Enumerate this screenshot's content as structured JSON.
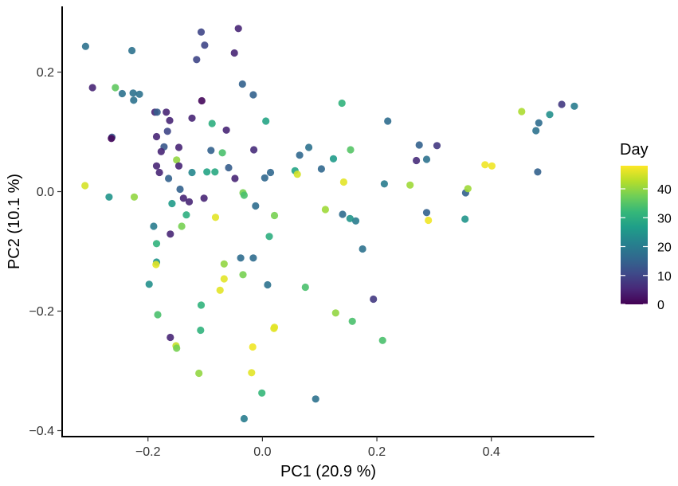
{
  "chart_data": {
    "type": "scatter",
    "xlabel": "PC1 (20.9 %)",
    "ylabel": "PC2 (10.1 %)",
    "xlim": [
      -0.35,
      0.58
    ],
    "ylim": [
      -0.41,
      0.31
    ],
    "x_ticks": [
      {
        "value": -0.2,
        "label": "−0.2"
      },
      {
        "value": 0.0,
        "label": "0.0"
      },
      {
        "value": 0.2,
        "label": "0.2"
      },
      {
        "value": 0.4,
        "label": "0.4"
      }
    ],
    "y_ticks": [
      {
        "value": 0.2,
        "label": "0.2"
      },
      {
        "value": 0.0,
        "label": "0.0"
      },
      {
        "value": -0.2,
        "label": "−0.2"
      },
      {
        "value": -0.4,
        "label": "−0.4"
      }
    ],
    "grid": false,
    "legend": {
      "title": "Day",
      "position": "right",
      "type": "colorbar",
      "range": [
        0,
        48
      ],
      "ticks": [
        0,
        10,
        20,
        30,
        40
      ],
      "colormap": "viridis",
      "colors": [
        "#440154",
        "#482878",
        "#3e4a89",
        "#31688e",
        "#26828e",
        "#1f9e89",
        "#35b779",
        "#6ece58",
        "#b5de2b",
        "#fde725"
      ]
    },
    "points": [
      {
        "x": -0.309,
        "y": 0.243,
        "day": 18
      },
      {
        "x": -0.297,
        "y": 0.174,
        "day": 5
      },
      {
        "x": -0.257,
        "y": 0.174,
        "day": 36
      },
      {
        "x": -0.245,
        "y": 0.164,
        "day": 18
      },
      {
        "x": -0.228,
        "y": 0.236,
        "day": 18
      },
      {
        "x": -0.226,
        "y": 0.165,
        "day": 18
      },
      {
        "x": -0.225,
        "y": 0.153,
        "day": 18
      },
      {
        "x": -0.215,
        "y": 0.163,
        "day": 18
      },
      {
        "x": -0.188,
        "y": 0.133,
        "day": 5
      },
      {
        "x": -0.184,
        "y": 0.133,
        "day": 14
      },
      {
        "x": -0.168,
        "y": 0.133,
        "day": 5
      },
      {
        "x": -0.166,
        "y": 0.101,
        "day": 10
      },
      {
        "x": -0.162,
        "y": 0.119,
        "day": 5
      },
      {
        "x": -0.263,
        "y": 0.091,
        "day": 13
      },
      {
        "x": -0.264,
        "y": 0.089,
        "day": 1
      },
      {
        "x": -0.185,
        "y": 0.092,
        "day": 5
      },
      {
        "x": -0.172,
        "y": 0.075,
        "day": 13
      },
      {
        "x": -0.177,
        "y": 0.067,
        "day": 5
      },
      {
        "x": -0.185,
        "y": 0.043,
        "day": 5
      },
      {
        "x": -0.18,
        "y": 0.032,
        "day": 5
      },
      {
        "x": -0.15,
        "y": 0.053,
        "day": 40
      },
      {
        "x": -0.146,
        "y": 0.074,
        "day": 5
      },
      {
        "x": -0.123,
        "y": 0.123,
        "day": 5
      },
      {
        "x": -0.106,
        "y": 0.152,
        "day": 1
      },
      {
        "x": -0.101,
        "y": 0.245,
        "day": 10
      },
      {
        "x": -0.107,
        "y": 0.267,
        "day": 10
      },
      {
        "x": -0.115,
        "y": 0.221,
        "day": 10
      },
      {
        "x": -0.049,
        "y": 0.232,
        "day": 5
      },
      {
        "x": -0.042,
        "y": 0.273,
        "day": 5
      },
      {
        "x": -0.035,
        "y": 0.18,
        "day": 15
      },
      {
        "x": -0.088,
        "y": 0.114,
        "day": 30
      },
      {
        "x": -0.063,
        "y": 0.103,
        "day": 5
      },
      {
        "x": -0.016,
        "y": 0.162,
        "day": 15
      },
      {
        "x": 0.006,
        "y": 0.118,
        "day": 28
      },
      {
        "x": -0.09,
        "y": 0.069,
        "day": 15
      },
      {
        "x": -0.07,
        "y": 0.065,
        "day": 34
      },
      {
        "x": -0.015,
        "y": 0.07,
        "day": 6
      },
      {
        "x": -0.146,
        "y": 0.043,
        "day": 5
      },
      {
        "x": -0.123,
        "y": 0.032,
        "day": 22
      },
      {
        "x": -0.097,
        "y": 0.033,
        "day": 28
      },
      {
        "x": -0.083,
        "y": 0.033,
        "day": 29
      },
      {
        "x": -0.059,
        "y": 0.04,
        "day": 14
      },
      {
        "x": -0.048,
        "y": 0.022,
        "day": 5
      },
      {
        "x": -0.164,
        "y": 0.022,
        "day": 15
      },
      {
        "x": -0.144,
        "y": 0.004,
        "day": 15
      },
      {
        "x": -0.138,
        "y": -0.011,
        "day": 5
      },
      {
        "x": -0.128,
        "y": -0.017,
        "day": 5
      },
      {
        "x": -0.102,
        "y": -0.011,
        "day": 5
      },
      {
        "x": -0.158,
        "y": -0.02,
        "day": 26
      },
      {
        "x": -0.133,
        "y": -0.039,
        "day": 30
      },
      {
        "x": -0.082,
        "y": -0.043,
        "day": 46
      },
      {
        "x": -0.034,
        "y": -0.002,
        "day": 38
      },
      {
        "x": -0.032,
        "y": -0.006,
        "day": 34
      },
      {
        "x": -0.012,
        "y": -0.024,
        "day": 17
      },
      {
        "x": 0.004,
        "y": 0.023,
        "day": 16
      },
      {
        "x": 0.014,
        "y": 0.032,
        "day": 16
      },
      {
        "x": 0.057,
        "y": 0.035,
        "day": 28
      },
      {
        "x": 0.061,
        "y": 0.029,
        "day": 45
      },
      {
        "x": 0.065,
        "y": 0.061,
        "day": 16
      },
      {
        "x": 0.081,
        "y": 0.074,
        "day": 18
      },
      {
        "x": 0.139,
        "y": 0.148,
        "day": 31
      },
      {
        "x": 0.154,
        "y": 0.07,
        "day": 35
      },
      {
        "x": 0.124,
        "y": 0.055,
        "day": 26
      },
      {
        "x": 0.103,
        "y": 0.038,
        "day": 16
      },
      {
        "x": 0.142,
        "y": 0.016,
        "day": 46
      },
      {
        "x": -0.31,
        "y": 0.01,
        "day": 45
      },
      {
        "x": -0.268,
        "y": -0.009,
        "day": 25
      },
      {
        "x": -0.224,
        "y": -0.009,
        "day": 40
      },
      {
        "x": -0.19,
        "y": -0.058,
        "day": 20
      },
      {
        "x": -0.185,
        "y": -0.087,
        "day": 31
      },
      {
        "x": -0.161,
        "y": -0.071,
        "day": 5
      },
      {
        "x": -0.185,
        "y": -0.118,
        "day": 25
      },
      {
        "x": -0.186,
        "y": -0.122,
        "day": 46
      },
      {
        "x": -0.198,
        "y": -0.155,
        "day": 24
      },
      {
        "x": -0.183,
        "y": -0.206,
        "day": 34
      },
      {
        "x": -0.141,
        "y": -0.058,
        "day": 38
      },
      {
        "x": -0.038,
        "y": -0.111,
        "day": 17
      },
      {
        "x": -0.016,
        "y": -0.111,
        "day": 17
      },
      {
        "x": 0.012,
        "y": -0.075,
        "day": 30
      },
      {
        "x": 0.021,
        "y": -0.04,
        "day": 38
      },
      {
        "x": -0.067,
        "y": -0.121,
        "day": 40
      },
      {
        "x": -0.067,
        "y": -0.146,
        "day": 46
      },
      {
        "x": -0.034,
        "y": -0.139,
        "day": 38
      },
      {
        "x": 0.009,
        "y": -0.156,
        "day": 18
      },
      {
        "x": -0.074,
        "y": -0.165,
        "day": 46
      },
      {
        "x": -0.107,
        "y": -0.19,
        "day": 31
      },
      {
        "x": -0.108,
        "y": -0.232,
        "day": 31
      },
      {
        "x": -0.161,
        "y": -0.244,
        "day": 5
      },
      {
        "x": -0.151,
        "y": -0.258,
        "day": 44
      },
      {
        "x": -0.15,
        "y": -0.262,
        "day": 38
      },
      {
        "x": -0.111,
        "y": -0.304,
        "day": 40
      },
      {
        "x": 0.02,
        "y": -0.229,
        "day": 46
      },
      {
        "x": 0.021,
        "y": -0.227,
        "day": 46
      },
      {
        "x": -0.017,
        "y": -0.26,
        "day": 47
      },
      {
        "x": -0.019,
        "y": -0.303,
        "day": 46
      },
      {
        "x": -0.001,
        "y": -0.337,
        "day": 32
      },
      {
        "x": -0.032,
        "y": -0.38,
        "day": 20
      },
      {
        "x": 0.075,
        "y": -0.16,
        "day": 34
      },
      {
        "x": 0.093,
        "y": -0.347,
        "day": 18
      },
      {
        "x": 0.128,
        "y": -0.203,
        "day": 40
      },
      {
        "x": 0.157,
        "y": -0.217,
        "day": 34
      },
      {
        "x": 0.21,
        "y": -0.249,
        "day": 34
      },
      {
        "x": 0.194,
        "y": -0.18,
        "day": 8
      },
      {
        "x": 0.175,
        "y": -0.096,
        "day": 18
      },
      {
        "x": 0.163,
        "y": -0.049,
        "day": 20
      },
      {
        "x": 0.153,
        "y": -0.045,
        "day": 25
      },
      {
        "x": 0.14,
        "y": -0.038,
        "day": 17
      },
      {
        "x": 0.11,
        "y": -0.03,
        "day": 41
      },
      {
        "x": 0.219,
        "y": 0.118,
        "day": 17
      },
      {
        "x": 0.213,
        "y": 0.013,
        "day": 20
      },
      {
        "x": 0.258,
        "y": 0.011,
        "day": 41
      },
      {
        "x": 0.274,
        "y": 0.078,
        "day": 15
      },
      {
        "x": 0.269,
        "y": 0.052,
        "day": 6
      },
      {
        "x": 0.287,
        "y": 0.054,
        "day": 18
      },
      {
        "x": 0.305,
        "y": 0.077,
        "day": 8
      },
      {
        "x": 0.287,
        "y": -0.035,
        "day": 15
      },
      {
        "x": 0.29,
        "y": -0.048,
        "day": 47
      },
      {
        "x": 0.355,
        "y": -0.002,
        "day": 15
      },
      {
        "x": 0.359,
        "y": 0.005,
        "day": 41
      },
      {
        "x": 0.354,
        "y": -0.046,
        "day": 25
      },
      {
        "x": 0.389,
        "y": 0.045,
        "day": 47
      },
      {
        "x": 0.401,
        "y": 0.043,
        "day": 47
      },
      {
        "x": 0.453,
        "y": 0.134,
        "day": 42
      },
      {
        "x": 0.478,
        "y": 0.102,
        "day": 18
      },
      {
        "x": 0.483,
        "y": 0.115,
        "day": 17
      },
      {
        "x": 0.502,
        "y": 0.129,
        "day": 24
      },
      {
        "x": 0.523,
        "y": 0.146,
        "day": 8
      },
      {
        "x": 0.545,
        "y": 0.143,
        "day": 20
      },
      {
        "x": 0.481,
        "y": 0.033,
        "day": 15
      }
    ]
  }
}
